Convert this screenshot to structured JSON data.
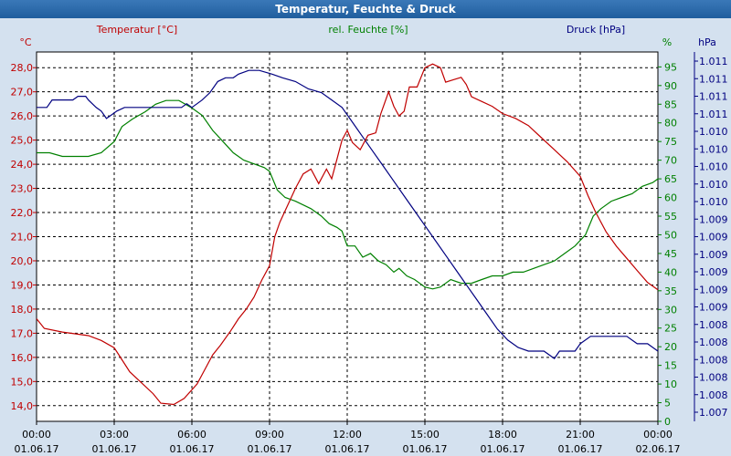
{
  "window": {
    "title": "Temperatur, Feuchte & Druck"
  },
  "chart_data": {
    "type": "line",
    "title": "Temperatur, Feuchte & Druck",
    "colors": {
      "temperature": "#c00000",
      "humidity": "#008000",
      "pressure": "#000080",
      "background": "#d4e1ef",
      "plot_bg": "#ffffff"
    },
    "grid": true,
    "series_labels": {
      "temperature": "Temperatur [°C]",
      "humidity": "rel. Feuchte [%]",
      "pressure": "Druck [hPa]"
    },
    "axis_units": {
      "temperature": "°C",
      "humidity": "%",
      "pressure": "hPa"
    },
    "y_left": {
      "ticks": [
        "14,0",
        "15,0",
        "16,0",
        "17,0",
        "18,0",
        "19,0",
        "20,0",
        "21,0",
        "22,0",
        "23,0",
        "24,0",
        "25,0",
        "26,0",
        "27,0",
        "28,0"
      ],
      "lim": [
        13.35,
        28.65
      ]
    },
    "y_right1": {
      "ticks": [
        "0",
        "5",
        "10",
        "15",
        "20",
        "25",
        "30",
        "35",
        "40",
        "45",
        "50",
        "55",
        "60",
        "65",
        "70",
        "75",
        "80",
        "85",
        "90",
        "95"
      ],
      "lim": [
        0,
        99
      ]
    },
    "y_right2": {
      "ticks": [
        "1.007",
        "1.008",
        "1.008",
        "1.008",
        "1.008",
        "1.008",
        "1.009",
        "1.009",
        "1.009",
        "1.009",
        "1.009",
        "1.009",
        "1.010",
        "1.010",
        "1.010",
        "1.010",
        "1.010",
        "1.011",
        "1.011",
        "1.011",
        "1.011"
      ],
      "lim": [
        1.00675,
        1.01175
      ]
    },
    "x_ticks": [
      {
        "time": "00:00",
        "date": "01.06.17"
      },
      {
        "time": "03:00",
        "date": "01.06.17"
      },
      {
        "time": "06:00",
        "date": "01.06.17"
      },
      {
        "time": "09:00",
        "date": "01.06.17"
      },
      {
        "time": "12:00",
        "date": "01.06.17"
      },
      {
        "time": "15:00",
        "date": "01.06.17"
      },
      {
        "time": "18:00",
        "date": "01.06.17"
      },
      {
        "time": "21:00",
        "date": "01.06.17"
      },
      {
        "time": "00:00",
        "date": "02.06.17"
      }
    ],
    "x_hours_range": [
      0,
      24
    ],
    "temperature": [
      [
        0,
        17.6
      ],
      [
        0.3,
        17.2
      ],
      [
        1,
        17.05
      ],
      [
        2,
        16.9
      ],
      [
        2.5,
        16.7
      ],
      [
        3,
        16.4
      ],
      [
        3.3,
        15.9
      ],
      [
        3.6,
        15.4
      ],
      [
        4,
        15.0
      ],
      [
        4.5,
        14.5
      ],
      [
        4.8,
        14.1
      ],
      [
        5.3,
        14.05
      ],
      [
        5.7,
        14.3
      ],
      [
        6.2,
        14.9
      ],
      [
        6.5,
        15.5
      ],
      [
        6.8,
        16.1
      ],
      [
        7.1,
        16.5
      ],
      [
        7.5,
        17.1
      ],
      [
        7.8,
        17.6
      ],
      [
        8.1,
        18.0
      ],
      [
        8.4,
        18.5
      ],
      [
        8.7,
        19.2
      ],
      [
        9,
        19.8
      ],
      [
        9.2,
        21.0
      ],
      [
        9.4,
        21.6
      ],
      [
        9.7,
        22.3
      ],
      [
        10,
        23.0
      ],
      [
        10.3,
        23.6
      ],
      [
        10.6,
        23.8
      ],
      [
        10.9,
        23.2
      ],
      [
        11.2,
        23.8
      ],
      [
        11.4,
        23.4
      ],
      [
        11.6,
        24.2
      ],
      [
        11.8,
        25.0
      ],
      [
        12,
        25.4
      ],
      [
        12.2,
        24.9
      ],
      [
        12.5,
        24.6
      ],
      [
        12.8,
        25.2
      ],
      [
        13.1,
        25.3
      ],
      [
        13.3,
        26.1
      ],
      [
        13.6,
        27.0
      ],
      [
        13.8,
        26.4
      ],
      [
        14,
        26.0
      ],
      [
        14.2,
        26.2
      ],
      [
        14.4,
        27.2
      ],
      [
        14.7,
        27.2
      ],
      [
        15,
        28.0
      ],
      [
        15.3,
        28.15
      ],
      [
        15.6,
        28.0
      ],
      [
        15.8,
        27.4
      ],
      [
        16.1,
        27.5
      ],
      [
        16.4,
        27.6
      ],
      [
        16.6,
        27.3
      ],
      [
        16.8,
        26.8
      ],
      [
        17.2,
        26.6
      ],
      [
        17.6,
        26.4
      ],
      [
        18,
        26.1
      ],
      [
        18.5,
        25.9
      ],
      [
        19,
        25.6
      ],
      [
        19.5,
        25.1
      ],
      [
        20,
        24.6
      ],
      [
        20.5,
        24.1
      ],
      [
        21,
        23.5
      ],
      [
        21.3,
        22.7
      ],
      [
        21.6,
        22.0
      ],
      [
        22,
        21.2
      ],
      [
        22.4,
        20.6
      ],
      [
        22.8,
        20.1
      ],
      [
        23.2,
        19.6
      ],
      [
        23.6,
        19.1
      ],
      [
        24,
        18.8
      ]
    ],
    "humidity": [
      [
        0,
        72
      ],
      [
        0.5,
        72
      ],
      [
        1,
        71
      ],
      [
        2,
        71
      ],
      [
        2.5,
        72
      ],
      [
        3,
        75
      ],
      [
        3.3,
        79
      ],
      [
        3.7,
        81
      ],
      [
        4.2,
        83
      ],
      [
        4.6,
        85
      ],
      [
        5,
        86
      ],
      [
        5.5,
        86
      ],
      [
        6,
        84
      ],
      [
        6.4,
        82
      ],
      [
        6.8,
        78
      ],
      [
        7.2,
        75
      ],
      [
        7.6,
        72
      ],
      [
        8,
        70
      ],
      [
        8.4,
        69
      ],
      [
        8.8,
        68
      ],
      [
        9,
        67
      ],
      [
        9.3,
        62
      ],
      [
        9.6,
        60
      ],
      [
        10,
        59
      ],
      [
        10.3,
        58
      ],
      [
        10.6,
        57
      ],
      [
        11,
        55
      ],
      [
        11.3,
        53
      ],
      [
        11.6,
        52
      ],
      [
        11.8,
        51
      ],
      [
        12,
        47
      ],
      [
        12.3,
        47
      ],
      [
        12.6,
        44
      ],
      [
        12.9,
        45
      ],
      [
        13.2,
        43
      ],
      [
        13.5,
        42
      ],
      [
        13.8,
        40
      ],
      [
        14,
        41
      ],
      [
        14.3,
        39
      ],
      [
        14.6,
        38
      ],
      [
        15,
        36
      ],
      [
        15.3,
        35.5
      ],
      [
        15.6,
        36
      ],
      [
        16,
        38
      ],
      [
        16.4,
        37
      ],
      [
        16.8,
        37
      ],
      [
        17.2,
        38
      ],
      [
        17.6,
        39
      ],
      [
        18,
        39
      ],
      [
        18.4,
        40
      ],
      [
        18.8,
        40
      ],
      [
        19.2,
        41
      ],
      [
        19.6,
        42
      ],
      [
        20,
        43
      ],
      [
        20.4,
        45
      ],
      [
        20.8,
        47
      ],
      [
        21.2,
        50
      ],
      [
        21.5,
        55
      ],
      [
        21.8,
        57
      ],
      [
        22.2,
        59
      ],
      [
        22.6,
        60
      ],
      [
        23,
        61
      ],
      [
        23.4,
        63
      ],
      [
        23.8,
        64
      ],
      [
        24,
        65
      ]
    ],
    "pressure": [
      [
        0,
        1.011
      ],
      [
        0.4,
        1.011
      ],
      [
        0.6,
        1.0111
      ],
      [
        1.4,
        1.0111
      ],
      [
        1.6,
        1.01115
      ],
      [
        1.9,
        1.01115
      ],
      [
        2,
        1.0111
      ],
      [
        2.3,
        1.011
      ],
      [
        2.5,
        1.01095
      ],
      [
        2.7,
        1.01085
      ],
      [
        2.9,
        1.0109
      ],
      [
        3.1,
        1.01095
      ],
      [
        3.4,
        1.011
      ],
      [
        4,
        1.011
      ],
      [
        5,
        1.011
      ],
      [
        5.6,
        1.011
      ],
      [
        5.8,
        1.01105
      ],
      [
        6,
        1.011
      ],
      [
        6.2,
        1.01105
      ],
      [
        6.4,
        1.0111
      ],
      [
        6.7,
        1.0112
      ],
      [
        7,
        1.01135
      ],
      [
        7.3,
        1.0114
      ],
      [
        7.6,
        1.0114
      ],
      [
        7.8,
        1.01145
      ],
      [
        8.2,
        1.0115
      ],
      [
        8.6,
        1.0115
      ],
      [
        9.1,
        1.01145
      ],
      [
        9.5,
        1.0114
      ],
      [
        10,
        1.01135
      ],
      [
        10.5,
        1.01125
      ],
      [
        11,
        1.0112
      ],
      [
        11.4,
        1.0111
      ],
      [
        11.8,
        1.011
      ],
      [
        12.2,
        1.0108
      ],
      [
        12.6,
        1.0106
      ],
      [
        13,
        1.0104
      ],
      [
        13.4,
        1.0102
      ],
      [
        13.8,
        1.01
      ],
      [
        14.2,
        1.0098
      ],
      [
        14.6,
        1.0096
      ],
      [
        15,
        1.0094
      ],
      [
        15.4,
        1.0092
      ],
      [
        15.8,
        1.009
      ],
      [
        16.2,
        1.0088
      ],
      [
        16.6,
        1.0086
      ],
      [
        17,
        1.0084
      ],
      [
        17.4,
        1.0082
      ],
      [
        17.8,
        1.008
      ],
      [
        18.2,
        1.00785
      ],
      [
        18.6,
        1.00775
      ],
      [
        19,
        1.0077
      ],
      [
        19.6,
        1.0077
      ],
      [
        20,
        1.0076
      ],
      [
        20.2,
        1.0077
      ],
      [
        20.8,
        1.0077
      ],
      [
        21,
        1.0078
      ],
      [
        21.4,
        1.0079
      ],
      [
        22,
        1.0079
      ],
      [
        22.8,
        1.0079
      ],
      [
        23.2,
        1.0078
      ],
      [
        23.6,
        1.0078
      ],
      [
        24,
        1.0077
      ]
    ]
  }
}
